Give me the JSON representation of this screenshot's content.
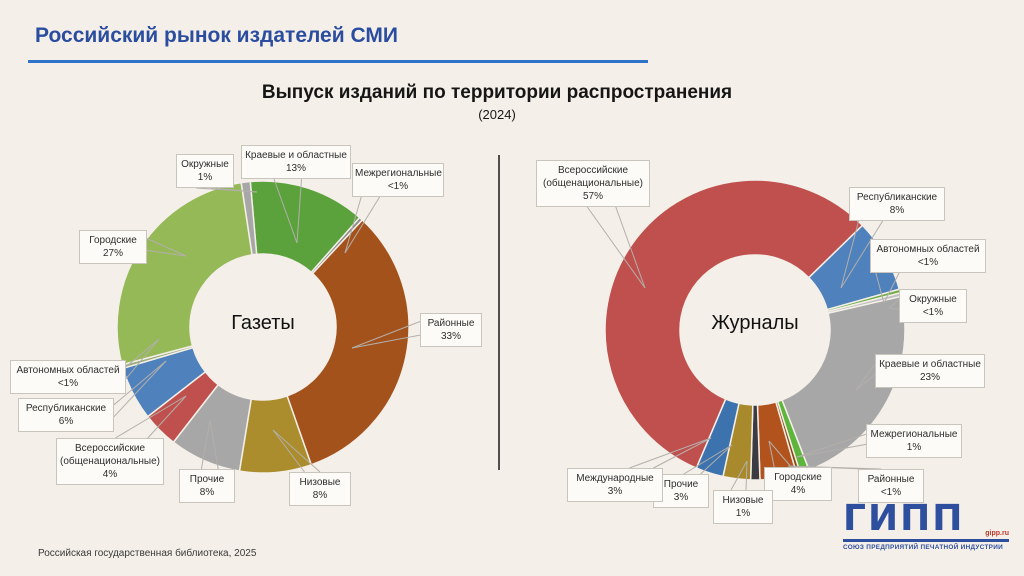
{
  "header": {
    "title": "Российский рынок издателей СМИ"
  },
  "subtitle": {
    "line1": "Выпуск изданий по территории распространения",
    "year": "(2024)"
  },
  "footer": {
    "source": "Российская государственная библиотека, 2025"
  },
  "logo": {
    "word": "ГИПП",
    "url": "gipp.ru",
    "caption": "СОЮЗ ПРЕДПРИЯТИЙ ПЕЧАТНОЙ ИНДУСТРИИ"
  },
  "colors": {
    "background": "#f4efe8",
    "title": "#2b4da0",
    "rule": "#2e74c9",
    "divider": "#1a1a1a",
    "leader": "#b3afaa",
    "callout_border": "#c9c4bc",
    "callout_fill": "#fdfbf7"
  },
  "chart_data": [
    {
      "type": "pie",
      "title": "Газеты",
      "center_label": "Газеты",
      "legend_position": "callouts",
      "start_angle": -5,
      "slices": [
        {
          "label": "Краевые и областные",
          "value_label": "13%",
          "pct": 13,
          "color": "#5ba23d"
        },
        {
          "label": "Межрегиональные",
          "value_label": "<1%",
          "pct": 0.4,
          "color": "#8c8c8c"
        },
        {
          "label": "Районные",
          "value_label": "33%",
          "pct": 33,
          "color": "#a4521c"
        },
        {
          "label": "Низовые",
          "value_label": "8%",
          "pct": 8,
          "color": "#ab8d2d"
        },
        {
          "label": "Прочие",
          "value_label": "8%",
          "pct": 8,
          "color": "#a7a7a7"
        },
        {
          "label": "Всероссийские (общенациональные)",
          "value_label": "4%",
          "pct": 4,
          "color": "#c0504d"
        },
        {
          "label": "Республиканские",
          "value_label": "6%",
          "pct": 6,
          "color": "#4f81bd"
        },
        {
          "label": "Автономных областей",
          "value_label": "<1%",
          "pct": 0.4,
          "color": "#9aab7a"
        },
        {
          "label": "Городские",
          "value_label": "27%",
          "pct": 27,
          "color": "#95b957"
        },
        {
          "label": "Окружные",
          "value_label": "1%",
          "pct": 1,
          "color": "#a7a7a7"
        }
      ]
    },
    {
      "type": "pie",
      "title": "Журналы",
      "center_label": "Журналы",
      "legend_position": "callouts",
      "start_angle": 203,
      "slices": [
        {
          "label": "Всероссийские (общенациональные)",
          "value_label": "57%",
          "pct": 57,
          "color": "#c0504d"
        },
        {
          "label": "Республиканские",
          "value_label": "8%",
          "pct": 8,
          "color": "#4f81bd"
        },
        {
          "label": "Автономных областей",
          "value_label": "<1%",
          "pct": 0.4,
          "color": "#70ad47"
        },
        {
          "label": "Окружные",
          "value_label": "<1%",
          "pct": 0.4,
          "color": "#c0c0c0"
        },
        {
          "label": "Краевые и областные",
          "value_label": "23%",
          "pct": 23,
          "color": "#a7a7a7"
        },
        {
          "label": "Межрегиональные",
          "value_label": "1%",
          "pct": 1,
          "color": "#5eb53c"
        },
        {
          "label": "Районные",
          "value_label": "<1%",
          "pct": 0.4,
          "color": "#8c4a10"
        },
        {
          "label": "Городские",
          "value_label": "4%",
          "pct": 4,
          "color": "#b2531e"
        },
        {
          "label": "Низовые",
          "value_label": "1%",
          "pct": 1,
          "color": "#3b3b44"
        },
        {
          "label": "Прочие",
          "value_label": "3%",
          "pct": 3,
          "color": "#a8892b"
        },
        {
          "label": "Международные",
          "value_label": "3%",
          "pct": 3,
          "color": "#3c72ad"
        }
      ]
    }
  ]
}
